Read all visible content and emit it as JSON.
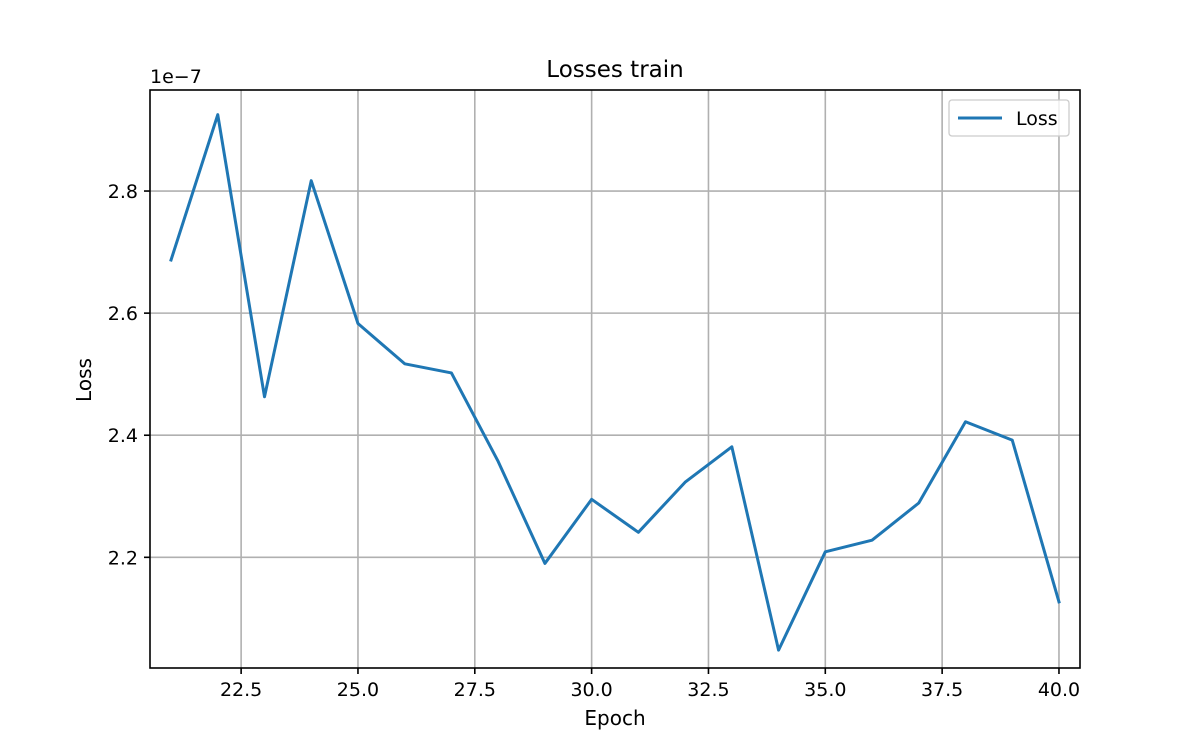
{
  "chart_data": {
    "type": "line",
    "title": "Losses train",
    "xlabel": "Epoch",
    "ylabel": "Loss",
    "y_offset_label": "1e−7",
    "y_scale_exponent": -7,
    "xlim": [
      20.55,
      40.45
    ],
    "ylim": [
      2.0187,
      2.9655
    ],
    "x_ticks": [
      22.5,
      25.0,
      27.5,
      30.0,
      32.5,
      35.0,
      37.5,
      40.0
    ],
    "x_tick_labels": [
      "22.5",
      "25.0",
      "27.5",
      "30.0",
      "32.5",
      "35.0",
      "37.5",
      "40.0"
    ],
    "y_ticks": [
      2.2,
      2.4,
      2.6,
      2.8
    ],
    "y_tick_labels": [
      "2.2",
      "2.4",
      "2.6",
      "2.8"
    ],
    "grid": true,
    "legend_position": "top-right",
    "series": [
      {
        "name": "Loss",
        "color": "#1f77b4",
        "x": [
          21,
          22,
          23,
          24,
          25,
          26,
          27,
          28,
          29,
          30,
          31,
          32,
          33,
          34,
          35,
          36,
          37,
          38,
          39,
          40
        ],
        "y": [
          2.687,
          2.925,
          2.463,
          2.817,
          2.583,
          2.517,
          2.502,
          2.357,
          2.19,
          2.295,
          2.241,
          2.323,
          2.381,
          2.048,
          2.209,
          2.228,
          2.289,
          2.422,
          2.392,
          2.127
        ]
      }
    ]
  }
}
